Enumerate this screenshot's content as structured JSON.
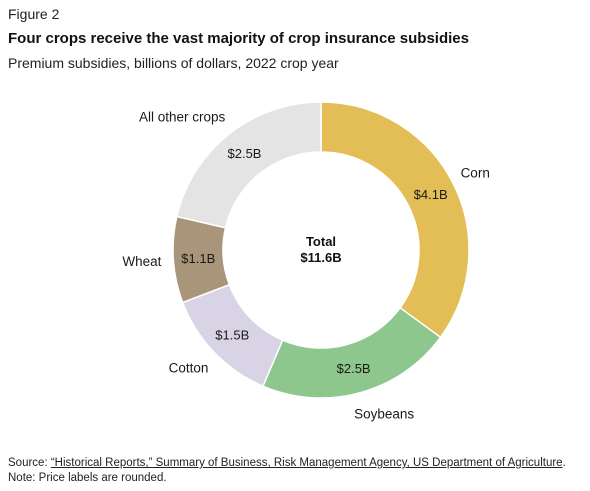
{
  "figure_label": "Figure 2",
  "title": "Four crops receive the vast majority of crop insurance subsidies",
  "subtitle": "Premium subsidies, billions of dollars, 2022 crop year",
  "chart_data": {
    "type": "pie",
    "donut": true,
    "center_label": {
      "line1": "Total",
      "line2": "$11.6B"
    },
    "slices": [
      {
        "name": "Corn",
        "value": 4.1,
        "label": "$4.1B",
        "color": "#e3bd55"
      },
      {
        "name": "Soybeans",
        "value": 2.5,
        "label": "$2.5B",
        "color": "#8ec78e"
      },
      {
        "name": "Cotton",
        "value": 1.5,
        "label": "$1.5B",
        "color": "#d8d4e6"
      },
      {
        "name": "Wheat",
        "value": 1.1,
        "label": "$1.1B",
        "color": "#a8957a"
      },
      {
        "name": "All other crops",
        "value": 2.5,
        "label": "$2.5B",
        "color": "#e4e4e4"
      }
    ]
  },
  "footer": {
    "source_prefix": "Source: ",
    "source_link": "“Historical Reports,” Summary of Business, Risk Management Agency, US Department of Agriculture",
    "source_suffix": ".",
    "note": "Note: Price labels are rounded."
  }
}
